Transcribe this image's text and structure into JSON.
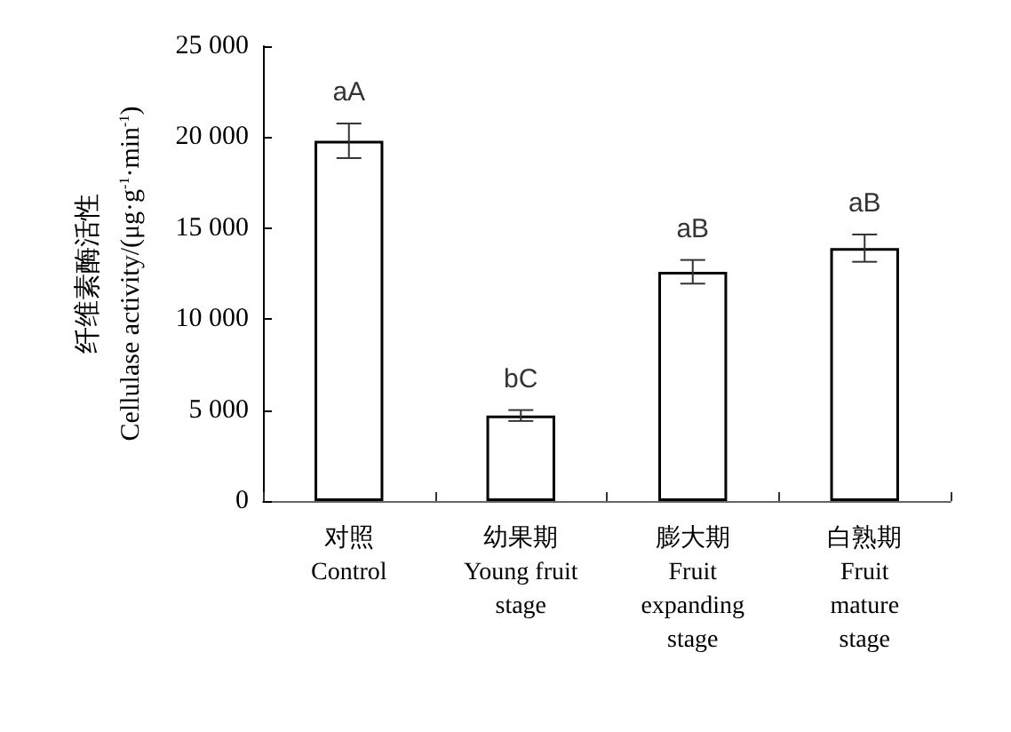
{
  "chart_data": {
    "type": "bar",
    "ylabel": "纤维素酶活性\nCellulase activity/(μg·g$^{-1}$·min$^{-1}$)",
    "categories": [
      "对照\nControl",
      "幼果期\nYoung fruit\nstage",
      "膨大期\nFruit\nexpanding\nstage",
      "白熟期\nFruit\nmature\nstage"
    ],
    "series": [
      {
        "color": "#ffffff",
        "values": [
          19800,
          4700,
          12600,
          13900
        ],
        "errors": [
          950,
          300,
          650,
          750
        ]
      }
    ],
    "ylim": [
      0,
      25000
    ],
    "yticks": [
      {
        "value": 0,
        "label": "0"
      },
      {
        "value": 5000,
        "label": "5 000"
      },
      {
        "value": 10000,
        "label": "10 000"
      },
      {
        "value": 15000,
        "label": "15 000"
      },
      {
        "value": 20000,
        "label": "20 000"
      },
      {
        "value": 25000,
        "label": "25 000"
      }
    ],
    "annotations": [
      "aA",
      "bC",
      "aB",
      "aB"
    ],
    "grid": false
  }
}
